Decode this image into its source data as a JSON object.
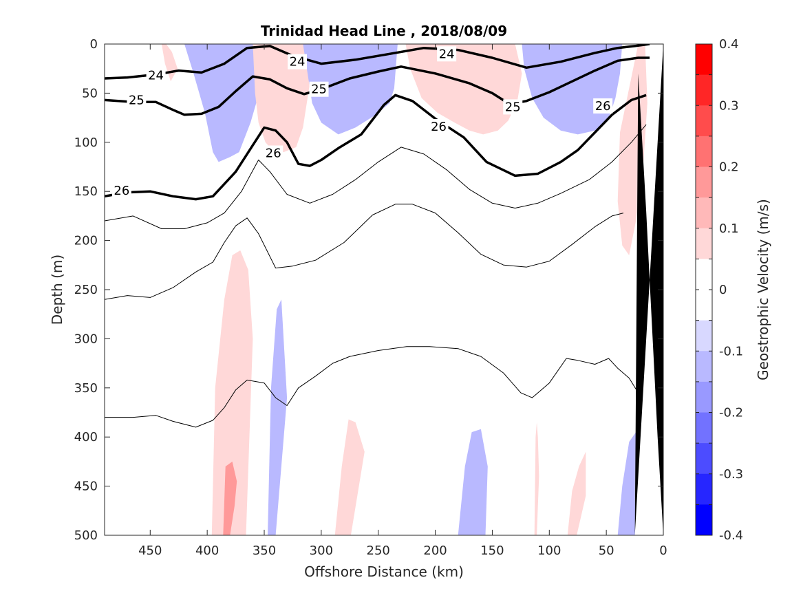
{
  "chart_data": {
    "type": "contour",
    "title": "Trinidad Head Line , 2018/08/09",
    "xlabel": "Offshore Distance (km)",
    "ylabel": "Depth (m)",
    "xlim": [
      490,
      0
    ],
    "ylim": [
      0,
      500
    ],
    "x_ticks": [
      "450",
      "400",
      "350",
      "300",
      "250",
      "200",
      "150",
      "100",
      "50",
      "0"
    ],
    "y_ticks": [
      "0",
      "50",
      "100",
      "150",
      "200",
      "250",
      "300",
      "350",
      "400",
      "450",
      "500"
    ],
    "colorbar": {
      "label": "Geostrophic Velocity (m/s)",
      "ticks": [
        "0.4",
        "0.3",
        "0.2",
        "0.1",
        "0",
        "-0.1",
        "-0.2",
        "-0.3",
        "-0.4"
      ],
      "range": [
        -0.4,
        0.4
      ],
      "levels": [
        {
          "color": "#ff0000"
        },
        {
          "color": "#ff2626"
        },
        {
          "color": "#ff4c4c"
        },
        {
          "color": "#ff7272"
        },
        {
          "color": "#ff9999"
        },
        {
          "color": "#ffb9b9"
        },
        {
          "color": "#ffd8d8"
        },
        {
          "color": "#ffffff"
        },
        {
          "color": "#ffffff"
        },
        {
          "color": "#d8d8ff"
        },
        {
          "color": "#b9b9ff"
        },
        {
          "color": "#9999ff"
        },
        {
          "color": "#7272ff"
        },
        {
          "color": "#4c4cff"
        },
        {
          "color": "#2626ff"
        },
        {
          "color": "#0000ff"
        }
      ]
    },
    "isopycnal_labels": [
      {
        "text": "24",
        "x": 445,
        "y": 32
      },
      {
        "text": "24",
        "x": 321,
        "y": 18
      },
      {
        "text": "24",
        "x": 190,
        "y": 10
      },
      {
        "text": "25",
        "x": 462,
        "y": 57
      },
      {
        "text": "25",
        "x": 302,
        "y": 46
      },
      {
        "text": "25",
        "x": 132,
        "y": 64
      },
      {
        "text": "26",
        "x": 475,
        "y": 149
      },
      {
        "text": "26",
        "x": 342,
        "y": 111
      },
      {
        "text": "26",
        "x": 197,
        "y": 84
      },
      {
        "text": "26",
        "x": 53,
        "y": 63
      }
    ],
    "isopycnals": [
      {
        "bold": true,
        "x": [
          490,
          470,
          445,
          425,
          405,
          385,
          365,
          345,
          325,
          300,
          270,
          240,
          210,
          180,
          150,
          120,
          90,
          60,
          40,
          25,
          12
        ],
        "y": [
          35,
          34,
          31,
          27,
          29,
          20,
          4,
          2,
          12,
          20,
          16,
          10,
          4,
          6,
          14,
          24,
          18,
          9,
          4,
          2,
          0
        ]
      },
      {
        "bold": true,
        "x": [
          490,
          465,
          445,
          430,
          420,
          405,
          390,
          375,
          360,
          345,
          330,
          315,
          300,
          275,
          250,
          230,
          200,
          170,
          150,
          135,
          120,
          100,
          80,
          60,
          40,
          22,
          12
        ],
        "y": [
          57,
          59,
          59,
          67,
          72,
          71,
          64,
          48,
          33,
          36,
          45,
          51,
          46,
          35,
          28,
          23,
          30,
          40,
          50,
          61,
          58,
          49,
          38,
          27,
          17,
          14,
          14
        ]
      },
      {
        "bold": true,
        "x": [
          490,
          470,
          450,
          430,
          410,
          395,
          375,
          360,
          350,
          340,
          330,
          320,
          310,
          300,
          285,
          265,
          245,
          235,
          220,
          200,
          175,
          155,
          130,
          110,
          90,
          75,
          60,
          45,
          28,
          15
        ],
        "y": [
          155,
          151,
          150,
          155,
          158,
          155,
          130,
          103,
          85,
          88,
          100,
          122,
          124,
          118,
          106,
          92,
          62,
          52,
          58,
          76,
          95,
          120,
          134,
          132,
          120,
          108,
          90,
          72,
          57,
          52
        ]
      },
      {
        "bold": false,
        "x": [
          490,
          465,
          440,
          420,
          400,
          385,
          370,
          355,
          345,
          330,
          310,
          290,
          270,
          250,
          230,
          210,
          190,
          170,
          150,
          130,
          110,
          90,
          65,
          45,
          28,
          15
        ],
        "y": [
          180,
          175,
          188,
          188,
          182,
          172,
          150,
          118,
          130,
          153,
          162,
          153,
          138,
          120,
          105,
          112,
          128,
          148,
          162,
          167,
          162,
          152,
          138,
          120,
          100,
          82
        ]
      },
      {
        "bold": false,
        "x": [
          490,
          470,
          450,
          430,
          410,
          395,
          385,
          375,
          365,
          355,
          340,
          325,
          305,
          280,
          255,
          235,
          220,
          200,
          180,
          160,
          140,
          120,
          100,
          80,
          60,
          45,
          35
        ],
        "y": [
          260,
          256,
          258,
          248,
          232,
          222,
          202,
          185,
          177,
          193,
          228,
          226,
          220,
          202,
          174,
          163,
          163,
          172,
          192,
          214,
          225,
          227,
          221,
          204,
          186,
          175,
          172
        ]
      },
      {
        "bold": false,
        "x": [
          490,
          465,
          445,
          430,
          410,
          395,
          385,
          375,
          365,
          350,
          340,
          330,
          320,
          305,
          290,
          275,
          250,
          225,
          205,
          180,
          160,
          140,
          125,
          115,
          100,
          85,
          75,
          60,
          48,
          40,
          30,
          22
        ],
        "y": [
          380,
          380,
          378,
          384,
          390,
          383,
          370,
          352,
          342,
          345,
          360,
          368,
          350,
          338,
          325,
          318,
          312,
          308,
          308,
          310,
          318,
          335,
          355,
          360,
          345,
          320,
          322,
          326,
          320,
          330,
          340,
          355
        ]
      }
    ],
    "velocity_regions": [
      {
        "v": -0.35,
        "x": [
          392,
          395,
          395,
          385,
          370,
          356,
          352,
          358,
          366,
          378,
          392
        ],
        "y": [
          0,
          25,
          55,
          45,
          30,
          18,
          5,
          0,
          0,
          0,
          0
        ]
      },
      {
        "v": -0.2,
        "x": [
          412,
          406,
          396,
          390,
          380,
          368,
          356,
          349,
          346,
          352,
          368,
          392,
          412
        ],
        "y": [
          0,
          35,
          60,
          80,
          88,
          78,
          50,
          24,
          5,
          0,
          0,
          0,
          0
        ]
      },
      {
        "v": -0.1,
        "x": [
          420,
          412,
          402,
          395,
          390,
          380,
          372,
          362,
          352,
          348,
          345,
          352,
          372,
          402,
          420
        ],
        "y": [
          0,
          30,
          70,
          110,
          120,
          115,
          110,
          80,
          40,
          15,
          0,
          0,
          0,
          0,
          0
        ]
      },
      {
        "v": 0.3,
        "x": [
          346,
          350,
          345,
          338,
          330,
          322,
          317,
          322,
          336,
          346
        ],
        "y": [
          0,
          20,
          45,
          55,
          50,
          35,
          18,
          0,
          0,
          0
        ]
      },
      {
        "v": 0.2,
        "x": [
          356,
          355,
          352,
          345,
          335,
          323,
          316,
          312,
          318,
          336,
          356
        ],
        "y": [
          0,
          40,
          62,
          80,
          80,
          75,
          55,
          30,
          0,
          0,
          0
        ]
      },
      {
        "v": 0.1,
        "x": [
          360,
          358,
          355,
          349,
          343,
          333,
          322,
          316,
          310,
          315,
          340,
          360
        ],
        "y": [
          0,
          50,
          80,
          100,
          108,
          110,
          105,
          85,
          40,
          0,
          0,
          0
        ]
      },
      {
        "v": 0.1,
        "x": [
          440,
          437,
          432,
          426,
          431,
          436,
          440
        ],
        "y": [
          0,
          20,
          38,
          25,
          8,
          0,
          0
        ]
      },
      {
        "v": -0.2,
        "x": [
          292,
          283,
          268,
          250,
          236,
          242,
          272,
          292
        ],
        "y": [
          0,
          15,
          25,
          25,
          18,
          0,
          0,
          0
        ]
      },
      {
        "v": -0.1,
        "x": [
          316,
          312,
          308,
          300,
          285,
          270,
          252,
          240,
          236,
          233,
          250,
          285,
          316
        ],
        "y": [
          0,
          30,
          60,
          80,
          92,
          85,
          72,
          60,
          45,
          0,
          0,
          0,
          0
        ]
      },
      {
        "v": 0.2,
        "x": [
          176,
          170,
          160,
          150,
          140,
          132,
          130,
          140,
          160,
          176
        ],
        "y": [
          0,
          25,
          45,
          55,
          50,
          35,
          10,
          0,
          0,
          0
        ]
      },
      {
        "v": 0.1,
        "x": [
          226,
          222,
          212,
          198,
          183,
          170,
          158,
          145,
          136,
          128,
          124,
          130,
          170,
          226
        ],
        "y": [
          0,
          25,
          55,
          70,
          80,
          88,
          92,
          88,
          78,
          58,
          30,
          0,
          0,
          0
        ]
      },
      {
        "v": -0.3,
        "x": [
          92,
          88,
          78,
          70,
          64,
          68,
          80,
          92
        ],
        "y": [
          0,
          25,
          42,
          45,
          30,
          0,
          0,
          0
        ]
      },
      {
        "v": -0.2,
        "x": [
          110,
          104,
          94,
          82,
          72,
          62,
          55,
          57,
          74,
          110
        ],
        "y": [
          0,
          30,
          55,
          65,
          65,
          50,
          25,
          0,
          0,
          0
        ]
      },
      {
        "v": -0.1,
        "x": [
          124,
          122,
          115,
          105,
          90,
          75,
          60,
          48,
          42,
          38,
          36,
          50,
          90,
          124
        ],
        "y": [
          0,
          25,
          55,
          75,
          88,
          92,
          88,
          76,
          55,
          30,
          0,
          0,
          0,
          0
        ]
      },
      {
        "v": 0.1,
        "x": [
          16,
          14,
          18,
          24,
          30,
          36,
          40,
          38,
          30,
          22,
          16
        ],
        "y": [
          0,
          60,
          130,
          180,
          215,
          205,
          160,
          90,
          45,
          0,
          0
        ]
      },
      {
        "v": 0.1,
        "x": [
          396,
          393,
          385,
          378,
          371,
          364,
          360,
          366,
          381,
          396
        ],
        "y": [
          500,
          350,
          260,
          215,
          210,
          230,
          300,
          500,
          500,
          500
        ]
      },
      {
        "v": 0.2,
        "x": [
          386,
          384,
          378,
          374,
          376,
          380,
          386
        ],
        "y": [
          500,
          430,
          425,
          445,
          470,
          500,
          500
        ]
      },
      {
        "v": -0.1,
        "x": [
          347,
          344,
          339,
          335,
          330,
          340,
          347
        ],
        "y": [
          500,
          350,
          270,
          260,
          360,
          500,
          500
        ]
      },
      {
        "v": 0.1,
        "x": [
          288,
          282,
          276,
          270,
          262,
          274,
          288
        ],
        "y": [
          500,
          430,
          382,
          385,
          415,
          500,
          500
        ]
      },
      {
        "v": -0.1,
        "x": [
          180,
          174,
          168,
          160,
          154,
          156,
          166,
          180
        ],
        "y": [
          500,
          430,
          395,
          392,
          430,
          500,
          500,
          500
        ]
      },
      {
        "v": 0.1,
        "x": [
          113,
          112,
          111,
          110,
          109,
          111,
          113
        ],
        "y": [
          500,
          400,
          385,
          400,
          440,
          500,
          500
        ]
      },
      {
        "v": 0.1,
        "x": [
          84,
          80,
          74,
          68,
          68,
          76,
          84
        ],
        "y": [
          500,
          455,
          430,
          415,
          460,
          500,
          500
        ]
      },
      {
        "v": -0.1,
        "x": [
          40,
          36,
          30,
          24,
          25,
          30,
          40
        ],
        "y": [
          500,
          450,
          405,
          395,
          500,
          500,
          500
        ]
      }
    ],
    "seafloor": {
      "x": [
        0,
        0,
        2,
        5,
        8,
        12,
        15,
        18,
        20,
        22,
        25
      ],
      "y": [
        0,
        500,
        460,
        400,
        330,
        240,
        170,
        110,
        70,
        30,
        500
      ]
    }
  }
}
